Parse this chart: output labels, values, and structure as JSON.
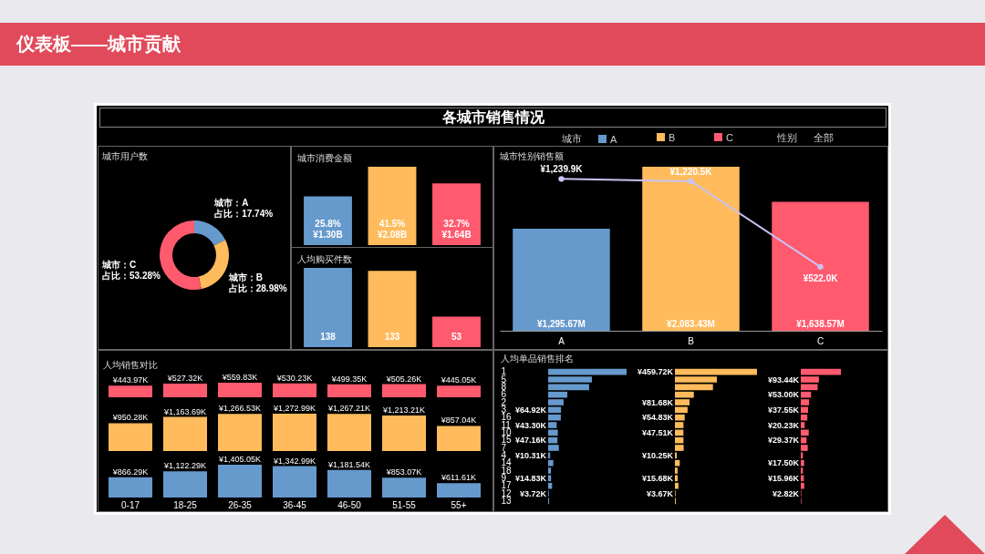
{
  "chart_data": [
    {
      "type": "other",
      "title": "仪表板——城市贡献",
      "subtitle": "各城市销售情况",
      "annotations": [
        "性别",
        "全部"
      ]
    },
    {
      "type": "donut",
      "title": "城市用户数",
      "categories": [
        "城市：A",
        "城市：B",
        "城市：C"
      ],
      "values": [
        17.74,
        28.98,
        53.28
      ],
      "colors": [
        "#6699cc",
        "#ffbb5c",
        "#ff5a6e"
      ],
      "value_labels": [
        "占比：17.74%",
        "占比：28.98%",
        "占比：53.28%"
      ]
    },
    {
      "type": "bar",
      "title": "城市消费金额",
      "categories": [
        null,
        null,
        null
      ],
      "values": [
        25.8,
        41.5,
        32.7
      ],
      "colors": [
        "#6699cc",
        "#ffbb5c",
        "#ff5a6e"
      ],
      "value_labels": [
        "25.8%\n¥1.30B",
        "41.5%\n¥2.08B",
        "32.7%\n¥1.64B"
      ]
    },
    {
      "type": "bar",
      "title": "人均购买件数",
      "categories": [
        null,
        null,
        null
      ],
      "values": [
        138,
        133,
        53
      ],
      "colors": [
        "#6699cc",
        "#ffbb5c",
        "#ff5a6e"
      ],
      "data_labels": true
    },
    {
      "type": "bar",
      "title": "城市性别销售额",
      "categories": [
        "A",
        "B",
        "C"
      ],
      "marker": "circle",
      "series": [
        {
          "type": "bar",
          "colors": [
            "#6699cc",
            "#ffbb5c",
            "#ff5a6e"
          ],
          "values": [
            1295.67,
            2083.43,
            1638.57
          ],
          "value_labels": [
            "¥1,295.67M",
            "¥2,083.43M",
            "¥1,638.57M"
          ]
        },
        {
          "type": "line",
          "axis": "y2",
          "color": "#c9c3f2",
          "values": [
            1239.9,
            1220.5,
            522.0
          ],
          "value_labels": [
            "¥1,239.9K",
            "¥1,220.5K",
            "¥522.0K"
          ]
        }
      ]
    },
    {
      "type": "bar",
      "title": "人均销售对比",
      "categories": [
        null,
        null,
        null,
        null,
        null,
        null,
        null
      ],
      "color": "#ff5a6e",
      "values": [
        443.97,
        527.32,
        559.83,
        530.23,
        499.35,
        505.26,
        445.05
      ],
      "value_labels": [
        "¥443.97K",
        "¥527.32K",
        "¥559.83K",
        "¥530.23K",
        "¥499.35K",
        "¥505.26K",
        "¥445.05K"
      ]
    },
    {
      "type": "bar",
      "categories": [
        null,
        null,
        null,
        null,
        null,
        null,
        null
      ],
      "color": "#ffbb5c",
      "values": [
        950.28,
        1163.69,
        1266.53,
        1272.99,
        1267.21,
        1213.21,
        857.04
      ],
      "value_labels": [
        "¥950.28K",
        "¥1,163.69K",
        "¥1,266.53K",
        "¥1,272.99K",
        "¥1,267.21K",
        "¥1,213.21K",
        "¥857.04K"
      ]
    },
    {
      "type": "bar",
      "categories": [
        "0-17",
        "18-25",
        "26-35",
        "36-45",
        "46-50",
        "51-55",
        "55+"
      ],
      "color": "#6699cc",
      "values": [
        866.29,
        1122.29,
        1405.05,
        1342.99,
        1181.54,
        853.07,
        611.61
      ],
      "value_labels": [
        "¥866.29K",
        "¥1,122.29K",
        "¥1,405.05K",
        "¥1,342.99K",
        "¥1,181.54K",
        "¥853.07K",
        "¥611.61K"
      ]
    },
    {
      "type": "bar",
      "orientation": "horizontal",
      "title": "人均单品销售排名",
      "legend": "top",
      "legend_title": "城市",
      "categories": [
        "1",
        "5",
        "8",
        "6",
        "2",
        "3",
        "16",
        "11",
        "10",
        "15",
        "7",
        "4",
        "14",
        "18",
        "9",
        "17",
        "12",
        "13"
      ],
      "series": [
        {
          "name": "A",
          "color": "#6699cc",
          "values": [
            396,
            221,
            207,
            97,
            78,
            64.92,
            64,
            43.3,
            49,
            47.16,
            54,
            10.31,
            26,
            14,
            14.83,
            20,
            3.72,
            5
          ],
          "value_labels": [
            null,
            null,
            null,
            null,
            null,
            "¥64.92K",
            null,
            "¥43.30K",
            null,
            "¥47.16K",
            null,
            "¥10.31K",
            null,
            null,
            "¥14.83K",
            null,
            "¥3.72K",
            null
          ]
        }
      ]
    },
    {
      "type": "bar",
      "orientation": "horizontal",
      "legend": "top",
      "categories": [
        null,
        null,
        null,
        null,
        null,
        null,
        null,
        null,
        null,
        null,
        null,
        null,
        null,
        null,
        null,
        null,
        null,
        null
      ],
      "series": [
        {
          "name": "B",
          "color": "#ffbb5c",
          "values": [
            459.72,
            235,
            213,
            106,
            81.68,
            71,
            54.83,
            48,
            47.51,
            48,
            49,
            10.25,
            27,
            15,
            15.68,
            20,
            3.67,
            5
          ],
          "value_labels": [
            "¥459.72K",
            null,
            null,
            null,
            "¥81.68K",
            null,
            "¥54.83K",
            null,
            "¥47.51K",
            null,
            null,
            "¥10.25K",
            null,
            null,
            "¥15.68K",
            null,
            "¥3.67K",
            null
          ]
        }
      ]
    },
    {
      "type": "bar",
      "orientation": "horizontal",
      "legend": "top",
      "categories": [
        null,
        null,
        null,
        null,
        null,
        null,
        null,
        null,
        null,
        null,
        null,
        null,
        null,
        null,
        null,
        null,
        null,
        null
      ],
      "series": [
        {
          "name": "C",
          "color": "#ff5a6e",
          "values": [
            207,
            93.44,
            87,
            53.0,
            43,
            37.55,
            34,
            20.23,
            41,
            29.37,
            36,
            11,
            17.5,
            11,
            15.96,
            18,
            2.82,
            3
          ],
          "value_labels": [
            null,
            "¥93.44K",
            null,
            "¥53.00K",
            null,
            "¥37.55K",
            null,
            "¥20.23K",
            null,
            "¥29.37K",
            null,
            null,
            "¥17.50K",
            null,
            "¥15.96K",
            null,
            "¥2.82K",
            null
          ]
        }
      ]
    }
  ]
}
